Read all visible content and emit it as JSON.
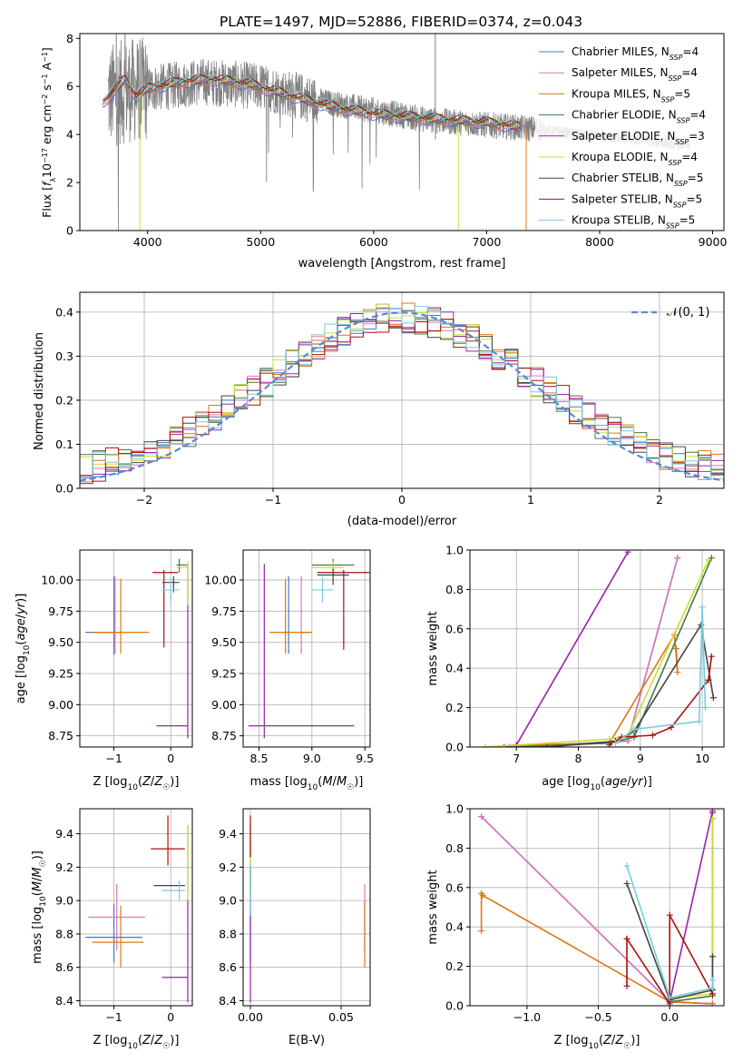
{
  "figure_title": "PLATE=1497, MJD=52886, FIBERID=0374, z=0.043",
  "models": [
    {
      "label": "Chabrier MILES, N",
      "sub": "SSP",
      "n": "=4",
      "color": "#4477cc"
    },
    {
      "label": "Salpeter MILES, N",
      "sub": "SSP",
      "n": "=4",
      "color": "#dd77bb"
    },
    {
      "label": "Kroupa MILES, N",
      "sub": "SSP",
      "n": "=5",
      "color": "#dd7711"
    },
    {
      "label": "Chabrier ELODIE, N",
      "sub": "SSP",
      "n": "=4",
      "color": "#447744"
    },
    {
      "label": "Salpeter ELODIE, N",
      "sub": "SSP",
      "n": "=3",
      "color": "#9922aa"
    },
    {
      "label": "Kroupa ELODIE, N",
      "sub": "SSP",
      "n": "=4",
      "color": "#ccdd33"
    },
    {
      "label": "Chabrier STELIB, N",
      "sub": "SSP",
      "n": "=5",
      "color": "#444444"
    },
    {
      "label": "Salpeter STELIB, N",
      "sub": "SSP",
      "n": "=5",
      "color": "#aa1111"
    },
    {
      "label": "Kroupa STELIB, N",
      "sub": "SSP",
      "n": "=5",
      "color": "#77ccdd"
    }
  ],
  "chart_data": [
    {
      "id": "spectrum",
      "type": "line",
      "xlabel": "wavelength [Angstrom, rest frame]",
      "ylabel": "Flux [f_λ 10^-17 erg cm^-2 s^-1 A^-1]",
      "ylabel_parts": [
        "Flux [",
        "f",
        "λ",
        "10",
        "−17",
        " erg cm",
        "−2",
        " s",
        "−1",
        " A",
        "−1",
        "]"
      ],
      "xlim": [
        3400,
        9100
      ],
      "ylim": [
        0,
        8.2
      ],
      "xticks": [
        4000,
        5000,
        6000,
        7000,
        8000,
        9000
      ],
      "yticks": [
        0,
        2,
        4,
        6,
        8
      ],
      "data_color": "#808080",
      "data_envelope": {
        "x": [
          3650,
          3800,
          4000,
          4500,
          5000,
          5500,
          6000,
          6500,
          7000,
          7500,
          8000,
          8500,
          8800
        ],
        "y": [
          5.6,
          5.8,
          5.9,
          6.2,
          6.0,
          5.4,
          5.0,
          4.6,
          4.4,
          4.2,
          3.9,
          3.7,
          3.55
        ]
      },
      "model_envelope": {
        "x": [
          3600,
          3700,
          3800,
          3900,
          4000,
          4300,
          4600,
          4900,
          5200,
          5500,
          5800,
          6100,
          6400,
          6700,
          7000,
          7300
        ],
        "y": [
          5.3,
          5.8,
          6.3,
          5.6,
          5.9,
          6.2,
          6.3,
          6.1,
          5.7,
          5.3,
          5.0,
          4.8,
          4.7,
          4.6,
          4.5,
          4.3
        ]
      }
    },
    {
      "id": "residuals",
      "type": "histogram",
      "xlabel": "(data-model)/error",
      "ylabel": "Normed distribution",
      "xlim": [
        -2.5,
        2.5
      ],
      "ylim": [
        0,
        0.445
      ],
      "xticks": [
        -2,
        -1,
        0,
        1,
        2
      ],
      "yticks": [
        0.0,
        0.1,
        0.2,
        0.3,
        0.4
      ],
      "reference": {
        "label": "𝒩(0, 1)",
        "mean": 0,
        "sigma": 1,
        "color": "#5b87d6"
      },
      "bin_width": 0.1,
      "bin_range": [
        -2.5,
        2.5
      ]
    },
    {
      "id": "age_vs_Z",
      "type": "errorbar",
      "xlabel": "Z [log10(Z/Z☉)]",
      "ylabel": "age [log10(age/yr)]",
      "xlim": [
        -1.6,
        0.38
      ],
      "ylim": [
        8.66,
        10.24
      ],
      "xticks": [
        -1,
        0
      ],
      "yticks": [
        8.75,
        9.0,
        9.25,
        9.5,
        9.75,
        10.0
      ],
      "points": [
        {
          "m": 0,
          "x": -1.0,
          "xerr": [
            0.5,
            0.0
          ],
          "y": 9.58,
          "yerr": [
            0.18,
            0.45
          ]
        },
        {
          "m": 1,
          "x": -0.98,
          "xerr": [
            0.3,
            0.1
          ],
          "y": 9.58,
          "yerr": [
            0.17,
            0.45
          ]
        },
        {
          "m": 2,
          "x": -0.88,
          "xerr": [
            0.5,
            0.5
          ],
          "y": 9.58,
          "yerr": [
            0.17,
            0.43
          ]
        },
        {
          "m": 3,
          "x": 0.15,
          "xerr": [
            0.05,
            0.15
          ],
          "y": 10.12,
          "yerr": [
            0.06,
            0.05
          ]
        },
        {
          "m": 4,
          "x": 0.3,
          "xerr": [
            0.55,
            0.0
          ],
          "y": 8.83,
          "yerr": [
            0.1,
            1.3
          ]
        },
        {
          "m": 5,
          "x": 0.3,
          "xerr": [
            0.2,
            0.0
          ],
          "y": 10.1,
          "yerr": [
            0.3,
            0.05
          ]
        },
        {
          "m": 6,
          "x": 0.05,
          "xerr": [
            0.2,
            0.1
          ],
          "y": 9.98,
          "yerr": [
            0.08,
            0.05
          ]
        },
        {
          "m": 7,
          "x": -0.12,
          "xerr": [
            0.2,
            0.25
          ],
          "y": 10.06,
          "yerr": [
            0.6,
            0.02
          ]
        },
        {
          "m": 8,
          "x": 0.0,
          "xerr": [
            0.15,
            0.15
          ],
          "y": 9.92,
          "yerr": [
            0.1,
            0.1
          ]
        }
      ]
    },
    {
      "id": "age_vs_mass",
      "type": "errorbar",
      "xlabel": "mass [log10(M/M☉)]",
      "ylabel": "",
      "xlim": [
        8.35,
        9.55
      ],
      "ylim": [
        8.66,
        10.24
      ],
      "xticks": [
        8.5,
        9.0,
        9.5
      ],
      "yticks": [
        8.75,
        9.0,
        9.25,
        9.5,
        9.75,
        10.0
      ],
      "points": [
        {
          "m": 0,
          "x": 8.78,
          "xerr": [
            0.0,
            0.0
          ],
          "y": 9.58,
          "yerr": [
            0.17,
            0.45
          ]
        },
        {
          "m": 1,
          "x": 8.9,
          "xerr": [
            0.0,
            0.1
          ],
          "y": 9.58,
          "yerr": [
            0.17,
            0.45
          ]
        },
        {
          "m": 2,
          "x": 8.75,
          "xerr": [
            0.15,
            0.25
          ],
          "y": 9.58,
          "yerr": [
            0.17,
            0.43
          ]
        },
        {
          "m": 3,
          "x": 9.2,
          "xerr": [
            0.2,
            0.2
          ],
          "y": 10.12,
          "yerr": [
            0.06,
            0.05
          ]
        },
        {
          "m": 4,
          "x": 8.55,
          "xerr": [
            0.15,
            0.85
          ],
          "y": 8.83,
          "yerr": [
            0.1,
            1.3
          ]
        },
        {
          "m": 5,
          "x": 9.2,
          "xerr": [
            0.2,
            0.1
          ],
          "y": 10.1,
          "yerr": [
            0.1,
            0.05
          ]
        },
        {
          "m": 6,
          "x": 9.2,
          "xerr": [
            0.15,
            0.15
          ],
          "y": 10.04,
          "yerr": [
            0.08,
            0.05
          ]
        },
        {
          "m": 7,
          "x": 9.3,
          "xerr": [
            0.25,
            0.25
          ],
          "y": 10.06,
          "yerr": [
            0.62,
            0.02
          ]
        },
        {
          "m": 8,
          "x": 9.1,
          "xerr": [
            0.1,
            0.1
          ],
          "y": 9.92,
          "yerr": [
            0.1,
            0.1
          ]
        }
      ]
    },
    {
      "id": "weight_vs_age",
      "type": "line",
      "xlabel": "age [log10(age/yr)]",
      "ylabel": "mass weight",
      "xlim": [
        6.25,
        10.35
      ],
      "ylim": [
        0,
        1.0
      ],
      "xticks": [
        7,
        8,
        9,
        10
      ],
      "yticks": [
        0.0,
        0.2,
        0.4,
        0.6,
        0.8,
        1.0
      ],
      "series": [
        {
          "m": 0,
          "x": [
            6.9,
            8.8,
            9.6
          ],
          "y": [
            0.0,
            0.03,
            0.96
          ]
        },
        {
          "m": 1,
          "x": [
            6.9,
            8.8,
            9.6
          ],
          "y": [
            0.0,
            0.03,
            0.96
          ]
        },
        {
          "m": 2,
          "x": [
            6.5,
            7.0,
            8.5,
            9.55,
            9.6,
            9.58
          ],
          "y": [
            0.0,
            0.01,
            0.02,
            0.57,
            0.38,
            0.5
          ]
        },
        {
          "m": 3,
          "x": [
            7.0,
            8.5,
            8.9,
            10.15
          ],
          "y": [
            0.0,
            0.02,
            0.05,
            0.96
          ]
        },
        {
          "m": 4,
          "x": [
            6.8,
            7.0,
            8.8
          ],
          "y": [
            0.0,
            0.01,
            0.99
          ]
        },
        {
          "m": 5,
          "x": [
            6.5,
            8.5,
            8.8,
            10.1
          ],
          "y": [
            0.0,
            0.04,
            0.06,
            0.95
          ]
        },
        {
          "m": 6,
          "x": [
            7.5,
            8.6,
            8.9,
            9.98,
            10.18
          ],
          "y": [
            0.0,
            0.03,
            0.08,
            0.62,
            0.25
          ]
        },
        {
          "m": 7,
          "x": [
            8.5,
            8.7,
            9.2,
            9.5,
            10.1,
            10.15
          ],
          "y": [
            0.01,
            0.05,
            0.06,
            0.1,
            0.34,
            0.46
          ]
        },
        {
          "m": 8,
          "x": [
            8.6,
            8.9,
            9.95,
            10.0,
            10.05
          ],
          "y": [
            0.02,
            0.09,
            0.13,
            0.71,
            0.2
          ]
        }
      ]
    },
    {
      "id": "mass_vs_Z",
      "type": "errorbar",
      "xlabel": "Z [log10(Z/Z☉)]",
      "ylabel": "mass [log10(M/M☉)]",
      "xlim": [
        -1.6,
        0.38
      ],
      "ylim": [
        8.37,
        9.55
      ],
      "xticks": [
        -1,
        0
      ],
      "yticks": [
        8.4,
        8.6,
        8.8,
        9.0,
        9.2,
        9.4
      ],
      "points": [
        {
          "m": 0,
          "x": -1.0,
          "xerr": [
            0.5,
            0.5
          ],
          "y": 8.78,
          "yerr": [
            0.15,
            0.2
          ]
        },
        {
          "m": 1,
          "x": -0.95,
          "xerr": [
            0.5,
            0.5
          ],
          "y": 8.9,
          "yerr": [
            0.2,
            0.2
          ]
        },
        {
          "m": 2,
          "x": -0.88,
          "xerr": [
            0.5,
            0.4
          ],
          "y": 8.75,
          "yerr": [
            0.15,
            0.22
          ]
        },
        {
          "m": 3,
          "x": 0.3,
          "xerr": [
            0.0,
            0.0
          ],
          "y": 9.2,
          "yerr": [
            0.15,
            0.25
          ]
        },
        {
          "m": 4,
          "x": 0.3,
          "xerr": [
            0.45,
            0.0
          ],
          "y": 8.54,
          "yerr": [
            0.15,
            0.48
          ]
        },
        {
          "m": 5,
          "x": 0.3,
          "xerr": [
            0.0,
            0.0
          ],
          "y": 9.2,
          "yerr": [
            0.2,
            0.25
          ]
        },
        {
          "m": 6,
          "x": 0.0,
          "xerr": [
            0.3,
            0.25
          ],
          "y": 9.09,
          "yerr": [
            0.0,
            0.0
          ]
        },
        {
          "m": 7,
          "x": -0.05,
          "xerr": [
            0.3,
            0.3
          ],
          "y": 9.31,
          "yerr": [
            0.1,
            0.2
          ]
        },
        {
          "m": 8,
          "x": 0.15,
          "xerr": [
            0.3,
            0.1
          ],
          "y": 9.06,
          "yerr": [
            0.06,
            0.06
          ]
        }
      ]
    },
    {
      "id": "mass_vs_EBV",
      "type": "errorbar",
      "xlabel": "E(B-V)",
      "ylabel": "",
      "xlim": [
        -0.004,
        0.066
      ],
      "ylim": [
        8.37,
        9.55
      ],
      "xticks": [
        0.0,
        0.05
      ],
      "yticks": [
        8.4,
        8.6,
        8.8,
        9.0,
        9.2,
        9.4
      ],
      "points": [
        {
          "m": 0,
          "x": 0.0,
          "xerr": [
            0,
            0
          ],
          "y": 8.78,
          "yerr": [
            0.15,
            0.2
          ]
        },
        {
          "m": 1,
          "x": 0.063,
          "xerr": [
            0,
            0
          ],
          "y": 8.9,
          "yerr": [
            0.2,
            0.2
          ]
        },
        {
          "m": 2,
          "x": 0.063,
          "xerr": [
            0,
            0
          ],
          "y": 8.8,
          "yerr": [
            0.2,
            0.2
          ]
        },
        {
          "m": 3,
          "x": 0.0,
          "xerr": [
            0,
            0
          ],
          "y": 9.2,
          "yerr": [
            0.15,
            0.25
          ]
        },
        {
          "m": 4,
          "x": 0.0,
          "xerr": [
            0,
            0
          ],
          "y": 8.54,
          "yerr": [
            0.15,
            0.48
          ]
        },
        {
          "m": 5,
          "x": 0.0,
          "xerr": [
            0,
            0
          ],
          "y": 9.2,
          "yerr": [
            0.2,
            0.25
          ]
        },
        {
          "m": 6,
          "x": 0.0,
          "xerr": [
            0,
            0
          ],
          "y": 9.09,
          "yerr": [
            0.1,
            0.1
          ]
        },
        {
          "m": 7,
          "x": 0.0,
          "xerr": [
            0,
            0
          ],
          "y": 9.31,
          "yerr": [
            0.05,
            0.2
          ]
        },
        {
          "m": 8,
          "x": 0.0,
          "xerr": [
            0,
            0
          ],
          "y": 9.06,
          "yerr": [
            0.15,
            0.15
          ]
        }
      ]
    },
    {
      "id": "weight_vs_Z",
      "type": "line",
      "xlabel": "Z [log10(Z/Z☉)]",
      "ylabel": "mass weight",
      "xlim": [
        -1.4,
        0.38
      ],
      "ylim": [
        0,
        1.0
      ],
      "xticks": [
        -1.0,
        -0.5,
        0.0
      ],
      "yticks": [
        0.0,
        0.2,
        0.4,
        0.6,
        0.8,
        1.0
      ],
      "series": [
        {
          "m": 0,
          "x": [
            -1.32,
            0.0,
            0.3
          ],
          "y": [
            0.96,
            0.02,
            0.01
          ]
        },
        {
          "m": 1,
          "x": [
            -1.32,
            0.0,
            0.3
          ],
          "y": [
            0.96,
            0.02,
            0.01
          ]
        },
        {
          "m": 2,
          "x": [
            -1.32,
            -1.32,
            -1.31,
            0.0,
            0.3
          ],
          "y": [
            0.38,
            0.57,
            0.56,
            0.02,
            0.01
          ]
        },
        {
          "m": 3,
          "x": [
            0.0,
            0.3,
            0.3
          ],
          "y": [
            0.02,
            0.05,
            0.95
          ]
        },
        {
          "m": 4,
          "x": [
            0.0,
            0.3,
            0.3
          ],
          "y": [
            0.02,
            0.99,
            0.98
          ]
        },
        {
          "m": 5,
          "x": [
            0.0,
            0.3,
            0.3
          ],
          "y": [
            0.04,
            0.06,
            0.95
          ]
        },
        {
          "m": 6,
          "x": [
            -0.3,
            0.0,
            0.3,
            0.3
          ],
          "y": [
            0.62,
            0.03,
            0.08,
            0.25
          ]
        },
        {
          "m": 7,
          "x": [
            -0.3,
            -0.3,
            0.0,
            0.0,
            0.3
          ],
          "y": [
            0.1,
            0.34,
            0.01,
            0.46,
            0.06
          ]
        },
        {
          "m": 8,
          "x": [
            -0.3,
            0.0,
            0.3,
            0.3
          ],
          "y": [
            0.71,
            0.04,
            0.09,
            0.13
          ]
        }
      ]
    }
  ]
}
